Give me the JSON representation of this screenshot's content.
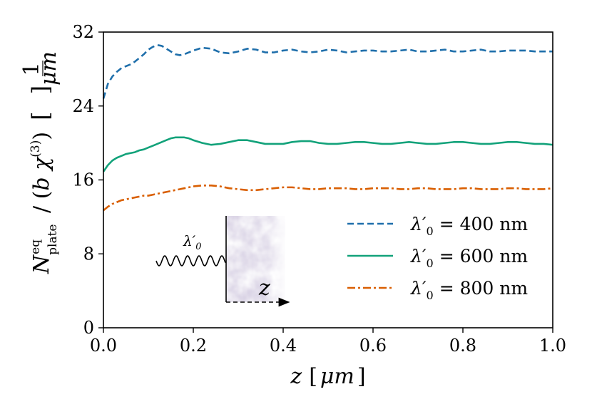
{
  "chart_data": {
    "type": "line",
    "title": "",
    "xlabel_var": "z",
    "xlabel_unit": "μm",
    "ylabel_main": "N",
    "ylabel_sup": "eq",
    "ylabel_sub": "plate",
    "ylabel_divisor_var": "b χ",
    "ylabel_divisor_sup": "(3)",
    "ylabel_unit_num": "1",
    "ylabel_unit_den": "μm",
    "xlim": [
      0.0,
      1.0
    ],
    "ylim": [
      0,
      32
    ],
    "xticks": [
      0.0,
      0.2,
      0.4,
      0.6,
      0.8,
      1.0
    ],
    "xtick_labels": [
      "0.0",
      "0.2",
      "0.4",
      "0.6",
      "0.8",
      "1.0"
    ],
    "yticks": [
      0,
      8,
      16,
      24,
      32
    ],
    "ytick_labels": [
      "0",
      "8",
      "16",
      "24",
      "32"
    ],
    "grid": false,
    "legend_position": "lower-right",
    "series": [
      {
        "name": "λ′0 = 400 nm",
        "legend_prefix": "λ′",
        "legend_sub": "0",
        "legend_value": "= 400 nm",
        "color": "#1f6fab",
        "style": "dashed",
        "x": [
          0.0,
          0.01,
          0.02,
          0.03,
          0.04,
          0.05,
          0.06,
          0.07,
          0.08,
          0.09,
          0.1,
          0.11,
          0.12,
          0.13,
          0.14,
          0.15,
          0.16,
          0.17,
          0.18,
          0.19,
          0.2,
          0.22,
          0.24,
          0.26,
          0.28,
          0.3,
          0.32,
          0.34,
          0.36,
          0.38,
          0.4,
          0.42,
          0.44,
          0.46,
          0.48,
          0.5,
          0.52,
          0.54,
          0.56,
          0.58,
          0.6,
          0.62,
          0.64,
          0.66,
          0.68,
          0.7,
          0.72,
          0.74,
          0.76,
          0.78,
          0.8,
          0.82,
          0.84,
          0.86,
          0.88,
          0.9,
          0.92,
          0.94,
          0.96,
          0.98,
          1.0
        ],
        "values": [
          24.8,
          26.4,
          27.2,
          27.7,
          28.1,
          28.3,
          28.5,
          28.8,
          29.2,
          29.6,
          30.1,
          30.4,
          30.6,
          30.5,
          30.2,
          29.9,
          29.6,
          29.5,
          29.6,
          29.8,
          30.0,
          30.3,
          30.2,
          29.8,
          29.7,
          29.9,
          30.2,
          30.1,
          29.8,
          29.8,
          30.0,
          30.1,
          29.9,
          29.8,
          29.9,
          30.1,
          30.0,
          29.8,
          29.9,
          30.0,
          30.0,
          29.9,
          29.9,
          30.0,
          30.1,
          29.9,
          29.9,
          30.0,
          30.1,
          29.9,
          29.9,
          30.0,
          30.1,
          29.9,
          29.9,
          30.0,
          30.0,
          30.0,
          29.9,
          29.9,
          29.9
        ]
      },
      {
        "name": "λ′0 = 600 nm",
        "legend_prefix": "λ′",
        "legend_sub": "0",
        "legend_value": "= 600 nm",
        "color": "#12a27a",
        "style": "solid",
        "x": [
          0.0,
          0.01,
          0.02,
          0.03,
          0.04,
          0.05,
          0.06,
          0.07,
          0.08,
          0.09,
          0.1,
          0.11,
          0.12,
          0.13,
          0.14,
          0.15,
          0.16,
          0.17,
          0.18,
          0.19,
          0.2,
          0.22,
          0.24,
          0.26,
          0.28,
          0.3,
          0.32,
          0.34,
          0.36,
          0.38,
          0.4,
          0.42,
          0.44,
          0.46,
          0.48,
          0.5,
          0.52,
          0.54,
          0.56,
          0.58,
          0.6,
          0.62,
          0.64,
          0.66,
          0.68,
          0.7,
          0.72,
          0.74,
          0.76,
          0.78,
          0.8,
          0.82,
          0.84,
          0.86,
          0.88,
          0.9,
          0.92,
          0.94,
          0.96,
          0.98,
          1.0
        ],
        "values": [
          16.9,
          17.6,
          18.1,
          18.4,
          18.6,
          18.8,
          18.9,
          19.0,
          19.2,
          19.3,
          19.5,
          19.7,
          19.9,
          20.1,
          20.3,
          20.5,
          20.6,
          20.6,
          20.6,
          20.5,
          20.3,
          20.0,
          19.8,
          19.9,
          20.1,
          20.3,
          20.3,
          20.1,
          19.9,
          19.9,
          19.9,
          20.1,
          20.2,
          20.2,
          20.0,
          19.9,
          19.9,
          20.0,
          20.1,
          20.1,
          20.0,
          19.9,
          19.9,
          20.0,
          20.1,
          20.0,
          19.9,
          19.9,
          20.0,
          20.1,
          20.1,
          20.0,
          19.9,
          19.9,
          20.0,
          20.1,
          20.1,
          20.0,
          19.9,
          19.9,
          19.8
        ]
      },
      {
        "name": "λ′0 = 800 nm",
        "legend_prefix": "λ′",
        "legend_sub": "0",
        "legend_value": "= 800 nm",
        "color": "#d95f02",
        "style": "dashdot",
        "x": [
          0.0,
          0.01,
          0.02,
          0.03,
          0.04,
          0.05,
          0.06,
          0.07,
          0.08,
          0.09,
          0.1,
          0.11,
          0.12,
          0.13,
          0.14,
          0.15,
          0.16,
          0.17,
          0.18,
          0.19,
          0.2,
          0.22,
          0.24,
          0.26,
          0.28,
          0.3,
          0.32,
          0.34,
          0.36,
          0.38,
          0.4,
          0.42,
          0.44,
          0.46,
          0.48,
          0.5,
          0.52,
          0.54,
          0.56,
          0.58,
          0.6,
          0.62,
          0.64,
          0.66,
          0.68,
          0.7,
          0.72,
          0.74,
          0.76,
          0.78,
          0.8,
          0.82,
          0.84,
          0.86,
          0.88,
          0.9,
          0.92,
          0.94,
          0.96,
          0.98,
          1.0
        ],
        "values": [
          12.7,
          13.1,
          13.4,
          13.6,
          13.8,
          13.9,
          14.0,
          14.1,
          14.2,
          14.3,
          14.3,
          14.4,
          14.5,
          14.6,
          14.7,
          14.8,
          14.9,
          15.0,
          15.1,
          15.2,
          15.3,
          15.4,
          15.4,
          15.3,
          15.1,
          15.0,
          14.9,
          14.9,
          15.0,
          15.1,
          15.2,
          15.2,
          15.1,
          15.0,
          15.0,
          15.1,
          15.1,
          15.1,
          15.0,
          15.0,
          15.1,
          15.1,
          15.1,
          15.0,
          15.0,
          15.1,
          15.1,
          15.0,
          15.0,
          15.0,
          15.1,
          15.1,
          15.0,
          15.0,
          15.0,
          15.1,
          15.1,
          15.0,
          15.0,
          15.0,
          15.1
        ]
      }
    ],
    "inset": {
      "wave_label_main": "λ′",
      "wave_label_sub": "0",
      "axis_label": "z"
    }
  }
}
